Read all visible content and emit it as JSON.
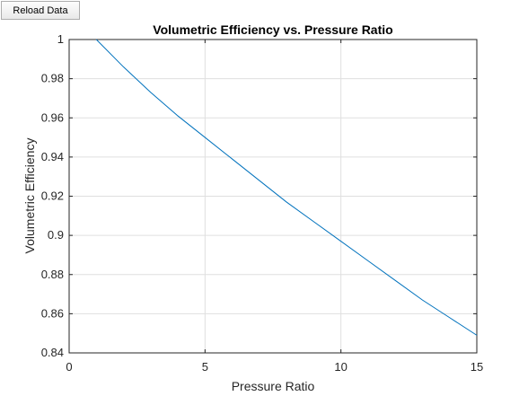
{
  "toolbar": {
    "reload_label": "Reload Data"
  },
  "chart_data": {
    "type": "line",
    "title": "Volumetric Efficiency vs. Pressure Ratio",
    "xlabel": "Pressure Ratio",
    "ylabel": "Volumetric Efficiency",
    "xlim": [
      0,
      15
    ],
    "ylim": [
      0.84,
      1
    ],
    "xticks": [
      0,
      5,
      10,
      15
    ],
    "xtick_labels": [
      "0",
      "5",
      "10",
      "15"
    ],
    "yticks": [
      0.84,
      0.86,
      0.88,
      0.9,
      0.92,
      0.94,
      0.96,
      0.98,
      1
    ],
    "ytick_labels": [
      "0.84",
      "0.86",
      "0.88",
      "0.9",
      "0.92",
      "0.94",
      "0.96",
      "0.98",
      "1"
    ],
    "grid": true,
    "line_color": "#0072BD",
    "series": [
      {
        "x": [
          1,
          2,
          3,
          4,
          5,
          6,
          7,
          8,
          9,
          10,
          11,
          12,
          13,
          14,
          15
        ],
        "y": [
          1.0,
          0.986,
          0.973,
          0.961,
          0.95,
          0.939,
          0.928,
          0.917,
          0.907,
          0.897,
          0.887,
          0.877,
          0.867,
          0.858,
          0.849
        ]
      }
    ]
  }
}
